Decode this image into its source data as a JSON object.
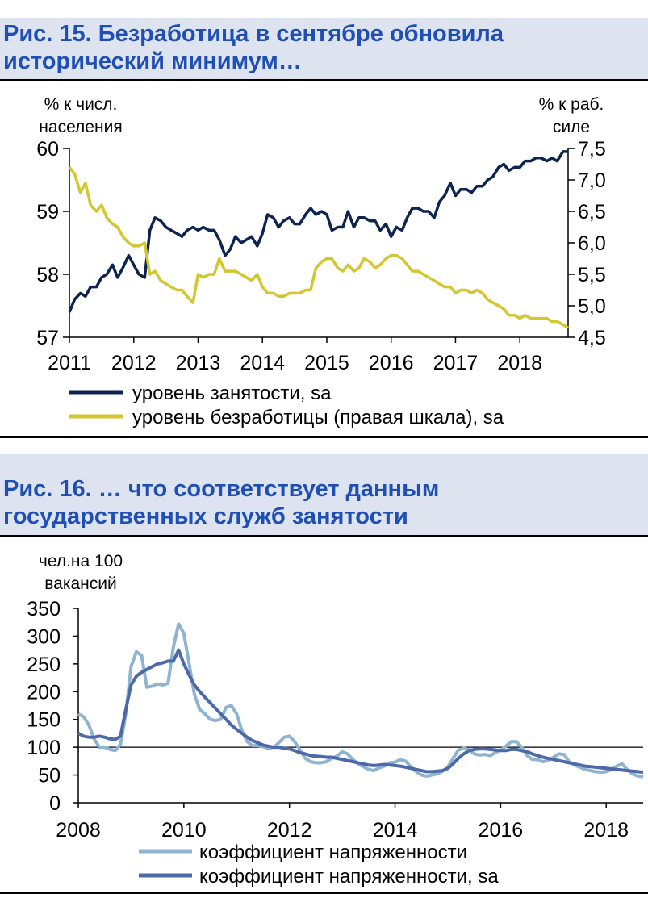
{
  "charts": [
    {
      "type": "line",
      "title_line1": "Рис. 15. Безработица в сентябре обновила",
      "title_line2": "исторический минимум…",
      "left_unit_line1": "% к числ.",
      "left_unit_line2": "населения",
      "right_unit_line1": "% к раб.",
      "right_unit_line2": "силе",
      "xlim": [
        2011,
        2018.75
      ],
      "x_ticks": [
        "2011",
        "2012",
        "2013",
        "2014",
        "2015",
        "2016",
        "2017",
        "2018"
      ],
      "ylim_left": [
        57,
        60
      ],
      "ylim_right": [
        4.5,
        7.5
      ],
      "y_ticks_left": [
        "57",
        "58",
        "59",
        "60"
      ],
      "y_ticks_right": [
        "4,5",
        "5,0",
        "5,5",
        "6,0",
        "6,5",
        "7,0",
        "7,5"
      ],
      "series": [
        {
          "name": "уровень занятости, sa",
          "axis": "left",
          "color": "#0d2451",
          "x": [
            2011.0,
            2011.08,
            2011.17,
            2011.25,
            2011.33,
            2011.42,
            2011.5,
            2011.58,
            2011.67,
            2011.75,
            2011.83,
            2011.92,
            2012.0,
            2012.08,
            2012.17,
            2012.25,
            2012.33,
            2012.42,
            2012.5,
            2012.58,
            2012.67,
            2012.75,
            2012.83,
            2012.92,
            2013.0,
            2013.08,
            2013.17,
            2013.25,
            2013.33,
            2013.42,
            2013.5,
            2013.58,
            2013.67,
            2013.75,
            2013.83,
            2013.92,
            2014.0,
            2014.08,
            2014.17,
            2014.25,
            2014.33,
            2014.42,
            2014.5,
            2014.58,
            2014.67,
            2014.75,
            2014.83,
            2014.92,
            2015.0,
            2015.08,
            2015.17,
            2015.25,
            2015.33,
            2015.42,
            2015.5,
            2015.58,
            2015.67,
            2015.75,
            2015.83,
            2015.92,
            2016.0,
            2016.08,
            2016.17,
            2016.25,
            2016.33,
            2016.42,
            2016.5,
            2016.58,
            2016.67,
            2016.75,
            2016.83,
            2016.92,
            2017.0,
            2017.08,
            2017.17,
            2017.25,
            2017.33,
            2017.42,
            2017.5,
            2017.58,
            2017.67,
            2017.75,
            2017.83,
            2017.92,
            2018.0,
            2018.08,
            2018.17,
            2018.25,
            2018.33,
            2018.42,
            2018.5,
            2018.58,
            2018.67,
            2018.75
          ],
          "values": [
            57.4,
            57.6,
            57.7,
            57.65,
            57.8,
            57.8,
            57.95,
            58.0,
            58.15,
            57.95,
            58.1,
            58.3,
            58.15,
            58.0,
            57.95,
            58.7,
            58.9,
            58.85,
            58.75,
            58.7,
            58.65,
            58.6,
            58.7,
            58.75,
            58.7,
            58.75,
            58.7,
            58.7,
            58.55,
            58.3,
            58.4,
            58.6,
            58.5,
            58.55,
            58.6,
            58.45,
            58.65,
            58.95,
            58.9,
            58.75,
            58.85,
            58.9,
            58.8,
            58.8,
            58.95,
            59.05,
            58.95,
            59.0,
            58.95,
            58.7,
            58.75,
            58.75,
            59.0,
            58.75,
            58.9,
            58.9,
            58.85,
            58.85,
            58.7,
            58.8,
            58.6,
            58.75,
            58.7,
            58.9,
            59.05,
            59.05,
            59.0,
            59.0,
            58.9,
            59.15,
            59.25,
            59.45,
            59.25,
            59.35,
            59.35,
            59.3,
            59.4,
            59.4,
            59.5,
            59.55,
            59.7,
            59.75,
            59.65,
            59.7,
            59.7,
            59.8,
            59.8,
            59.85,
            59.85,
            59.8,
            59.85,
            59.8,
            59.95,
            59.95
          ]
        },
        {
          "name": "уровень безработицы (правая шкала), sa",
          "axis": "right",
          "color": "#d4c62f",
          "x": [
            2011.0,
            2011.08,
            2011.17,
            2011.25,
            2011.33,
            2011.42,
            2011.5,
            2011.58,
            2011.67,
            2011.75,
            2011.83,
            2011.92,
            2012.0,
            2012.08,
            2012.17,
            2012.25,
            2012.33,
            2012.42,
            2012.5,
            2012.58,
            2012.67,
            2012.75,
            2012.83,
            2012.92,
            2013.0,
            2013.08,
            2013.17,
            2013.25,
            2013.33,
            2013.42,
            2013.5,
            2013.58,
            2013.67,
            2013.75,
            2013.83,
            2013.92,
            2014.0,
            2014.08,
            2014.17,
            2014.25,
            2014.33,
            2014.42,
            2014.5,
            2014.58,
            2014.67,
            2014.75,
            2014.83,
            2014.92,
            2015.0,
            2015.08,
            2015.17,
            2015.25,
            2015.33,
            2015.42,
            2015.5,
            2015.58,
            2015.67,
            2015.75,
            2015.83,
            2015.92,
            2016.0,
            2016.08,
            2016.17,
            2016.25,
            2016.33,
            2016.42,
            2016.5,
            2016.58,
            2016.67,
            2016.75,
            2016.83,
            2016.92,
            2017.0,
            2017.08,
            2017.17,
            2017.25,
            2017.33,
            2017.42,
            2017.5,
            2017.58,
            2017.67,
            2017.75,
            2017.83,
            2017.92,
            2018.0,
            2018.08,
            2018.17,
            2018.25,
            2018.33,
            2018.42,
            2018.5,
            2018.58,
            2018.67,
            2018.75
          ],
          "values": [
            7.2,
            7.1,
            6.8,
            6.95,
            6.6,
            6.5,
            6.6,
            6.4,
            6.3,
            6.25,
            6.1,
            6.0,
            5.95,
            5.95,
            6.0,
            5.5,
            5.55,
            5.4,
            5.35,
            5.3,
            5.25,
            5.25,
            5.15,
            5.05,
            5.5,
            5.45,
            5.5,
            5.5,
            5.75,
            5.55,
            5.55,
            5.55,
            5.5,
            5.45,
            5.4,
            5.5,
            5.3,
            5.2,
            5.2,
            5.15,
            5.15,
            5.2,
            5.2,
            5.2,
            5.25,
            5.25,
            5.6,
            5.7,
            5.75,
            5.75,
            5.6,
            5.55,
            5.65,
            5.55,
            5.6,
            5.75,
            5.7,
            5.6,
            5.65,
            5.75,
            5.8,
            5.8,
            5.75,
            5.65,
            5.55,
            5.55,
            5.5,
            5.45,
            5.4,
            5.35,
            5.3,
            5.3,
            5.2,
            5.25,
            5.25,
            5.2,
            5.25,
            5.2,
            5.1,
            5.05,
            5.0,
            4.95,
            4.85,
            4.85,
            4.8,
            4.85,
            4.8,
            4.8,
            4.8,
            4.8,
            4.75,
            4.75,
            4.7,
            4.65
          ]
        }
      ]
    },
    {
      "type": "line",
      "title_line1": "Рис. 16. … что соответствует данным",
      "title_line2": "государственных служб занятости",
      "left_unit_line1": "чел.на 100",
      "left_unit_line2": "вакансий",
      "xlim": [
        2008,
        2018.7
      ],
      "x_ticks": [
        "2008",
        "2010",
        "2012",
        "2014",
        "2016",
        "2018"
      ],
      "x_tick_values": [
        2008,
        2010,
        2012,
        2014,
        2016,
        2018
      ],
      "ylim": [
        0,
        350
      ],
      "y_ticks": [
        "0",
        "50",
        "100",
        "150",
        "200",
        "250",
        "300",
        "350"
      ],
      "reference_line_y": 100,
      "series": [
        {
          "name": "коэффициент напряженности",
          "color": "#8eb4d1",
          "x": [
            2008.0,
            2008.1,
            2008.2,
            2008.3,
            2008.4,
            2008.5,
            2008.6,
            2008.7,
            2008.8,
            2008.9,
            2009.0,
            2009.1,
            2009.2,
            2009.3,
            2009.4,
            2009.5,
            2009.6,
            2009.7,
            2009.8,
            2009.9,
            2010.0,
            2010.1,
            2010.2,
            2010.3,
            2010.4,
            2010.5,
            2010.6,
            2010.7,
            2010.8,
            2010.9,
            2011.0,
            2011.1,
            2011.2,
            2011.3,
            2011.4,
            2011.5,
            2011.6,
            2011.7,
            2011.8,
            2011.9,
            2012.0,
            2012.1,
            2012.2,
            2012.3,
            2012.4,
            2012.5,
            2012.6,
            2012.7,
            2012.8,
            2012.9,
            2013.0,
            2013.1,
            2013.2,
            2013.3,
            2013.4,
            2013.5,
            2013.6,
            2013.7,
            2013.8,
            2013.9,
            2014.0,
            2014.1,
            2014.2,
            2014.3,
            2014.4,
            2014.5,
            2014.6,
            2014.7,
            2014.8,
            2014.9,
            2015.0,
            2015.1,
            2015.2,
            2015.3,
            2015.4,
            2015.5,
            2015.6,
            2015.7,
            2015.8,
            2015.9,
            2016.0,
            2016.1,
            2016.2,
            2016.3,
            2016.4,
            2016.5,
            2016.6,
            2016.7,
            2016.8,
            2016.9,
            2017.0,
            2017.1,
            2017.2,
            2017.3,
            2017.4,
            2017.5,
            2017.6,
            2017.7,
            2017.8,
            2017.9,
            2018.0,
            2018.1,
            2018.2,
            2018.3,
            2018.4,
            2018.5,
            2018.6,
            2018.7
          ],
          "values": [
            160,
            155,
            140,
            115,
            100,
            100,
            96,
            94,
            105,
            160,
            245,
            272,
            265,
            208,
            210,
            214,
            212,
            215,
            280,
            322,
            305,
            250,
            195,
            168,
            160,
            150,
            148,
            150,
            172,
            175,
            160,
            130,
            110,
            103,
            103,
            101,
            98,
            100,
            108,
            118,
            120,
            110,
            95,
            80,
            74,
            72,
            72,
            74,
            80,
            84,
            92,
            88,
            78,
            70,
            65,
            60,
            58,
            63,
            66,
            72,
            73,
            78,
            75,
            65,
            56,
            50,
            48,
            50,
            52,
            57,
            64,
            80,
            95,
            98,
            96,
            88,
            86,
            87,
            85,
            90,
            95,
            102,
            110,
            110,
            100,
            85,
            78,
            78,
            74,
            76,
            82,
            88,
            87,
            74,
            68,
            64,
            60,
            58,
            56,
            55,
            56,
            60,
            66,
            70,
            60,
            52,
            48,
            47
          ]
        },
        {
          "name": "коэффициент напряженности, sa",
          "color": "#4c6aa8",
          "x": [
            2008.0,
            2008.1,
            2008.2,
            2008.3,
            2008.4,
            2008.5,
            2008.6,
            2008.7,
            2008.8,
            2008.9,
            2009.0,
            2009.1,
            2009.2,
            2009.3,
            2009.4,
            2009.5,
            2009.6,
            2009.7,
            2009.8,
            2009.9,
            2010.0,
            2010.1,
            2010.2,
            2010.3,
            2010.4,
            2010.5,
            2010.6,
            2010.7,
            2010.8,
            2010.9,
            2011.0,
            2011.1,
            2011.2,
            2011.3,
            2011.4,
            2011.5,
            2011.6,
            2011.7,
            2011.8,
            2011.9,
            2012.0,
            2012.1,
            2012.2,
            2012.3,
            2012.4,
            2012.5,
            2012.6,
            2012.7,
            2012.8,
            2012.9,
            2013.0,
            2013.1,
            2013.2,
            2013.3,
            2013.4,
            2013.5,
            2013.6,
            2013.7,
            2013.8,
            2013.9,
            2014.0,
            2014.1,
            2014.2,
            2014.3,
            2014.4,
            2014.5,
            2014.6,
            2014.7,
            2014.8,
            2014.9,
            2015.0,
            2015.1,
            2015.2,
            2015.3,
            2015.4,
            2015.5,
            2015.6,
            2015.7,
            2015.8,
            2015.9,
            2016.0,
            2016.1,
            2016.2,
            2016.3,
            2016.4,
            2016.5,
            2016.6,
            2016.7,
            2016.8,
            2016.9,
            2017.0,
            2017.1,
            2017.2,
            2017.3,
            2017.4,
            2017.5,
            2017.6,
            2017.7,
            2017.8,
            2017.9,
            2018.0,
            2018.1,
            2018.2,
            2018.3,
            2018.4,
            2018.5,
            2018.6,
            2018.7
          ],
          "values": [
            125,
            120,
            118,
            118,
            120,
            118,
            115,
            114,
            120,
            168,
            212,
            228,
            235,
            240,
            245,
            250,
            252,
            255,
            255,
            275,
            250,
            230,
            212,
            200,
            190,
            180,
            170,
            160,
            150,
            140,
            132,
            125,
            118,
            112,
            108,
            104,
            102,
            100,
            100,
            98,
            97,
            94,
            90,
            88,
            85,
            84,
            83,
            82,
            82,
            80,
            78,
            76,
            74,
            72,
            70,
            68,
            67,
            68,
            69,
            68,
            67,
            66,
            64,
            62,
            60,
            58,
            56,
            56,
            57,
            58,
            62,
            70,
            80,
            88,
            94,
            96,
            97,
            97,
            96,
            95,
            94,
            94,
            96,
            96,
            94,
            92,
            88,
            85,
            82,
            80,
            78,
            76,
            74,
            72,
            70,
            68,
            66,
            65,
            64,
            63,
            62,
            61,
            60,
            59,
            58,
            57,
            56,
            55
          ]
        }
      ]
    }
  ]
}
